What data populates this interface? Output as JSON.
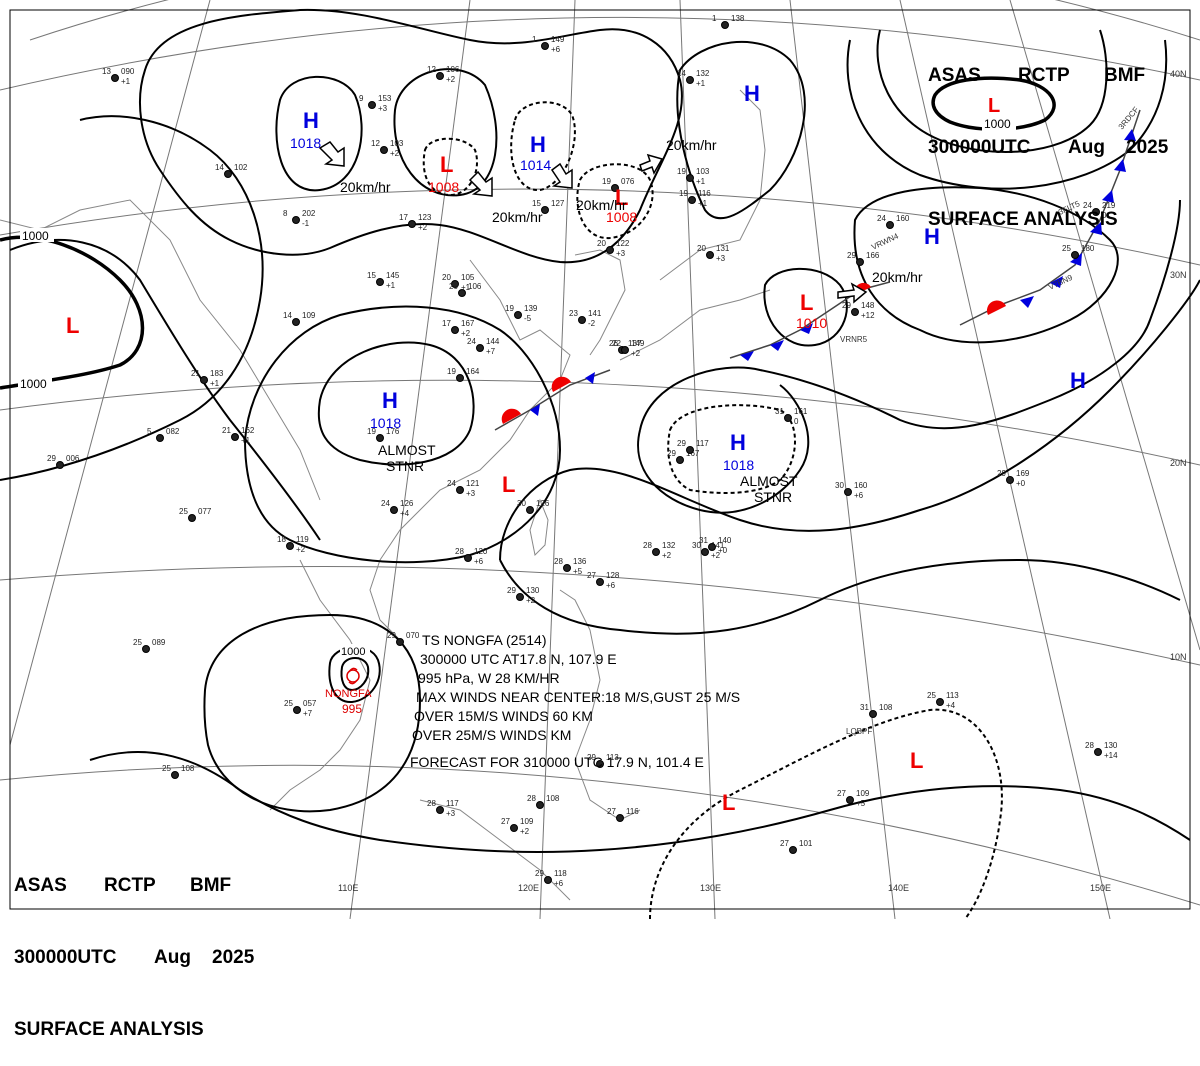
{
  "header": {
    "line1": [
      "ASAS",
      "RCTP",
      "BMF"
    ],
    "line2": [
      "300000UTC",
      "Aug",
      "2025"
    ],
    "line3": "SURFACE ANALYSIS"
  },
  "longitudes": [
    "110E",
    "120E",
    "130E",
    "140E",
    "150E"
  ],
  "latitudes": [
    "40N",
    "30N",
    "20N",
    "10N"
  ],
  "highs": [
    {
      "symbol": "H",
      "value": "1018"
    },
    {
      "symbol": "H",
      "value": "1014"
    },
    {
      "symbol": "H",
      "value": ""
    },
    {
      "symbol": "H",
      "value": ""
    },
    {
      "symbol": "H",
      "value": "1018"
    },
    {
      "symbol": "H",
      "value": "1018"
    },
    {
      "symbol": "H",
      "value": ""
    }
  ],
  "lows": [
    {
      "symbol": "L",
      "value": "1008"
    },
    {
      "symbol": "L",
      "value": "1008"
    },
    {
      "symbol": "L",
      "value": "1010"
    },
    {
      "symbol": "L",
      "value": ""
    },
    {
      "symbol": "L",
      "value": ""
    },
    {
      "symbol": "L",
      "value": ""
    },
    {
      "symbol": "L",
      "value": ""
    },
    {
      "symbol": "L",
      "value": ""
    }
  ],
  "isobar_labels": [
    "1000",
    "1000",
    "1000",
    "1000"
  ],
  "motion_labels": [
    "20km/hr",
    "20km/hr",
    "20km/hr",
    "20km/hr",
    "20km/hr"
  ],
  "stationary_notes": [
    {
      "line1": "ALMOST",
      "line2": "STNR"
    },
    {
      "line1": "ALMOST",
      "line2": "STNR"
    }
  ],
  "storm": {
    "symbol_label": "NONGFA",
    "pressure": "995",
    "bulletin": [
      "TS NONGFA (2514)",
      "300000 UTC  AT17.8 N, 107.9 E",
      "995 hPa, W  28 KM/HR",
      "MAX WINDS NEAR CENTER:18 M/S,GUST 25 M/S",
      "OVER 15M/S WINDS  60 KM",
      "OVER 25M/S WINDS   KM",
      "FORECAST FOR 310000 UTC 17.9 N, 101.4 E"
    ]
  },
  "stations": [
    {
      "t": "13",
      "p": "090",
      "d": "+1"
    },
    {
      "t": "9",
      "p": "153",
      "d": "+3"
    },
    {
      "t": "12",
      "p": "103",
      "d": "+2"
    },
    {
      "t": "14",
      "p": "102",
      "d": ""
    },
    {
      "t": "8",
      "p": "202",
      "d": "-1"
    },
    {
      "t": "17",
      "p": "123",
      "d": "+2"
    },
    {
      "t": "12",
      "p": "106",
      "d": "+2"
    },
    {
      "t": "1",
      "p": "149",
      "d": "+6"
    },
    {
      "t": "15",
      "p": "127",
      "d": ""
    },
    {
      "t": "19",
      "p": "076",
      "d": ""
    },
    {
      "t": "20",
      "p": "122",
      "d": "+3"
    },
    {
      "t": "20",
      "p": "131",
      "d": "+3"
    },
    {
      "t": "14",
      "p": "132",
      "d": "+1"
    },
    {
      "t": "19",
      "p": "103",
      "d": "+1"
    },
    {
      "t": "19",
      "p": "116",
      "d": "+1"
    },
    {
      "t": "1",
      "p": "138",
      "d": ""
    },
    {
      "t": "15",
      "p": "145",
      "d": "+1"
    },
    {
      "t": "20",
      "p": "105",
      "d": "+1"
    },
    {
      "t": "20",
      "p": "106",
      "d": ""
    },
    {
      "t": "14",
      "p": "109",
      "d": ""
    },
    {
      "t": "19",
      "p": "139",
      "d": "-5"
    },
    {
      "t": "23",
      "p": "141",
      "d": "-2"
    },
    {
      "t": "17",
      "p": "167",
      "d": "+2"
    },
    {
      "t": "24",
      "p": "144",
      "d": "+7"
    },
    {
      "t": "26",
      "p": "137",
      "d": ""
    },
    {
      "t": "19",
      "p": "164",
      "d": ""
    },
    {
      "t": "21",
      "p": "183",
      "d": "+1"
    },
    {
      "t": "5",
      "p": "082",
      "d": ""
    },
    {
      "t": "21",
      "p": "162",
      "d": "+1"
    },
    {
      "t": "29",
      "p": "006",
      "d": ""
    },
    {
      "t": "19",
      "p": "176",
      "d": ""
    },
    {
      "t": "24",
      "p": "121",
      "d": "+3"
    },
    {
      "t": "24",
      "p": "126",
      "d": "+4"
    },
    {
      "t": "30",
      "p": "126",
      "d": ""
    },
    {
      "t": "25",
      "p": "077",
      "d": ""
    },
    {
      "t": "18",
      "p": "119",
      "d": "+2"
    },
    {
      "t": "28",
      "p": "120",
      "d": "+6"
    },
    {
      "t": "28",
      "p": "136",
      "d": "+5"
    },
    {
      "t": "27",
      "p": "128",
      "d": "+6"
    },
    {
      "t": "29",
      "p": "130",
      "d": "+2"
    },
    {
      "t": "28",
      "p": "132",
      "d": "+2"
    },
    {
      "t": "30",
      "p": "141",
      "d": "+2"
    },
    {
      "t": "31",
      "p": "140",
      "d": "+0"
    },
    {
      "t": "25",
      "p": "089",
      "d": ""
    },
    {
      "t": "29",
      "p": "070",
      "d": ""
    },
    {
      "t": "25",
      "p": "057",
      "d": "+7"
    },
    {
      "t": "25",
      "p": "108",
      "d": ""
    },
    {
      "t": "28",
      "p": "117",
      "d": "+3"
    },
    {
      "t": "27",
      "p": "109",
      "d": "+2"
    },
    {
      "t": "28",
      "p": "108",
      "d": ""
    },
    {
      "t": "29",
      "p": "118",
      "d": "+6"
    },
    {
      "t": "29",
      "p": "113",
      "d": ""
    },
    {
      "t": "27",
      "p": "116",
      "d": ""
    },
    {
      "t": "31",
      "p": "108",
      "d": ""
    },
    {
      "t": "25",
      "p": "113",
      "d": "+4"
    },
    {
      "t": "27",
      "p": "109",
      "d": "+5"
    },
    {
      "t": "27",
      "p": "101",
      "d": ""
    },
    {
      "t": "28",
      "p": "130",
      "d": "+14"
    },
    {
      "t": "24",
      "p": "160",
      "d": ""
    },
    {
      "t": "29",
      "p": "166",
      "d": ""
    },
    {
      "t": "24",
      "p": "219",
      "d": "0"
    },
    {
      "t": "25",
      "p": "180",
      "d": ""
    },
    {
      "t": "29",
      "p": "148",
      "d": "+12"
    },
    {
      "t": "31",
      "p": "161",
      "d": "0"
    },
    {
      "t": "30",
      "p": "160",
      "d": "+6"
    },
    {
      "t": "29",
      "p": "169",
      "d": "+0"
    },
    {
      "t": "29",
      "p": "167",
      "d": ""
    },
    {
      "t": "29",
      "p": "117",
      "d": ""
    },
    {
      "t": "22",
      "p": "149",
      "d": "+2"
    }
  ],
  "ship_ids": [
    "VRWN4",
    "3FLT5",
    "V7BN9",
    "VRNR5",
    "LQBPF",
    "3RDCF"
  ],
  "colors": {
    "high": "#0000dd",
    "low": "#ee0000",
    "isobar": "#000000",
    "grid": "#777777",
    "coast": "#888888",
    "warm_front": "#ee0000",
    "cold_front": "#0000dd",
    "storm": "#dd0000"
  }
}
